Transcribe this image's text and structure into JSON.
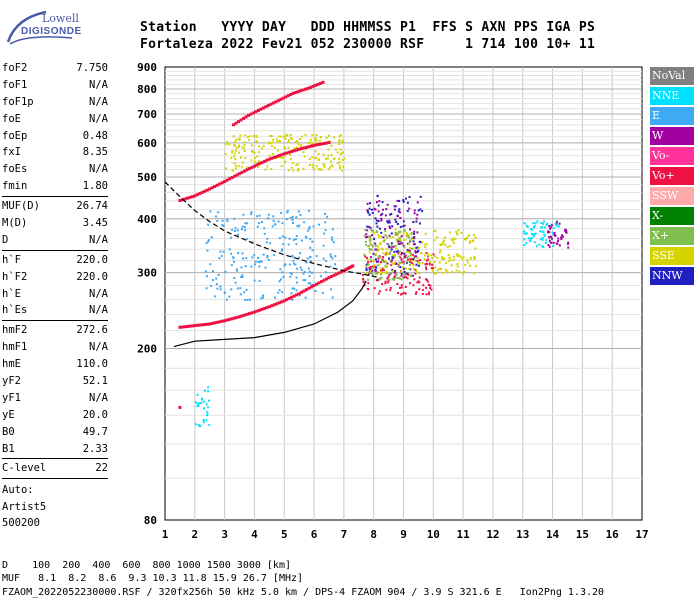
{
  "logo": {
    "line1": "Lowell",
    "line2": "DIGISONDE"
  },
  "header": {
    "line1": "Station   YYYY DAY   DDD HHMMSS P1  FFS S AXN PPS IGA PS",
    "line2": "Fortaleza 2022 Fev21 052 230000 RSF     1 714 100 10+ 11"
  },
  "params_group1": [
    {
      "label": "foF2",
      "value": "7.750"
    },
    {
      "label": "foF1",
      "value": "N/A"
    },
    {
      "label": "foF1p",
      "value": "N/A"
    },
    {
      "label": "foE",
      "value": "N/A"
    },
    {
      "label": "foEp",
      "value": "0.48"
    },
    {
      "label": "fxI",
      "value": "8.35"
    },
    {
      "label": "foEs",
      "value": "N/A"
    },
    {
      "label": "fmin",
      "value": "1.80"
    }
  ],
  "params_group2": [
    {
      "label": "MUF(D)",
      "value": "26.74"
    },
    {
      "label": "M(D)",
      "value": "3.45"
    },
    {
      "label": "D",
      "value": "N/A"
    }
  ],
  "params_group3": [
    {
      "label": "h`F",
      "value": "220.0"
    },
    {
      "label": "h`F2",
      "value": "220.0"
    },
    {
      "label": "h`E",
      "value": "N/A"
    },
    {
      "label": "h`Es",
      "value": "N/A"
    }
  ],
  "params_group4": [
    {
      "label": "hmF2",
      "value": "272.6"
    },
    {
      "label": "hmF1",
      "value": "N/A"
    },
    {
      "label": "hmE",
      "value": "110.0"
    },
    {
      "label": "yF2",
      "value": "52.1"
    },
    {
      "label": "yF1",
      "value": "N/A"
    },
    {
      "label": "yE",
      "value": "20.0"
    },
    {
      "label": "B0",
      "value": "49.7"
    },
    {
      "label": "B1",
      "value": "2.33"
    }
  ],
  "params_group5": [
    {
      "label": "C-level",
      "value": "22"
    }
  ],
  "autoscaling": {
    "line1": "Auto:",
    "line2": "Artist5",
    "line3": "500200"
  },
  "bottom": {
    "d_row": "D    100  200  400  600  800 1000 1500 3000 [km]",
    "muf_row": "MUF   8.1  8.2  8.6  9.3 10.3 11.8 15.9 26.7 [MHz]",
    "footer": "FZAOM_2022052230000.RSF / 320fx256h 50 kHz 5.0 km / DPS-4 FZAOM 904 / 3.9 S 321.6 E   Ion2Png 1.3.20"
  },
  "legend": [
    {
      "label": "NoVal",
      "color": "#808080"
    },
    {
      "label": "NNE",
      "color": "#00e0ff"
    },
    {
      "label": "E",
      "color": "#3fa9f5"
    },
    {
      "label": "W",
      "color": "#a000a0"
    },
    {
      "label": "Vo-",
      "color": "#ff3399"
    },
    {
      "label": "Vo+",
      "color": "#ee1144"
    },
    {
      "label": "SSW",
      "color": "#ffaaaa"
    },
    {
      "label": "X-",
      "color": "#008000"
    },
    {
      "label": "X+",
      "color": "#7fbf4f"
    },
    {
      "label": "SSE",
      "color": "#d4d400"
    },
    {
      "label": "NNW",
      "color": "#2020c0"
    }
  ],
  "chart_data": {
    "type": "scatter",
    "xlim": [
      1,
      17
    ],
    "ylim": [
      80,
      900
    ],
    "y_scale": "log",
    "x_ticks": [
      1,
      2,
      3,
      4,
      5,
      6,
      7,
      8,
      9,
      10,
      11,
      12,
      13,
      14,
      15,
      16,
      17
    ],
    "y_ticks": [
      80,
      200,
      300,
      400,
      500,
      600,
      700,
      800,
      900
    ],
    "grid": true,
    "curves": [
      {
        "name": "profile",
        "style": "solid",
        "points": [
          [
            1.3,
            202
          ],
          [
            2,
            208
          ],
          [
            3,
            210
          ],
          [
            4,
            212
          ],
          [
            5,
            218
          ],
          [
            6,
            228
          ],
          [
            6.8,
            243
          ],
          [
            7.3,
            258
          ],
          [
            7.6,
            275
          ],
          [
            7.75,
            287
          ]
        ]
      },
      {
        "name": "muf",
        "style": "dashed",
        "points": [
          [
            1,
            487
          ],
          [
            1.5,
            450
          ],
          [
            2,
            418
          ],
          [
            2.5,
            394
          ],
          [
            3,
            375
          ],
          [
            4,
            350
          ],
          [
            5,
            330
          ],
          [
            6,
            315
          ],
          [
            7,
            303
          ],
          [
            7.6,
            298
          ],
          [
            8.1,
            293
          ]
        ]
      }
    ],
    "traces": [
      {
        "color": "#ee1144",
        "points": [
          [
            1.5,
            224
          ],
          [
            2,
            226
          ],
          [
            2.5,
            228
          ],
          [
            3,
            232
          ],
          [
            3.5,
            237
          ],
          [
            4,
            243
          ],
          [
            4.5,
            250
          ],
          [
            5,
            258
          ],
          [
            5.5,
            268
          ],
          [
            6,
            280
          ],
          [
            6.5,
            292
          ],
          [
            7,
            303
          ],
          [
            7.3,
            311
          ]
        ]
      },
      {
        "color": "#ee1144",
        "points": [
          [
            1.5,
            441
          ],
          [
            2,
            452
          ],
          [
            2.5,
            469
          ],
          [
            3,
            488
          ],
          [
            3.5,
            509
          ],
          [
            4,
            530
          ],
          [
            4.5,
            550
          ],
          [
            5,
            566
          ],
          [
            5.5,
            580
          ],
          [
            6,
            592
          ],
          [
            6.5,
            601
          ]
        ]
      },
      {
        "color": "#ee1144",
        "points": [
          [
            3.3,
            661
          ],
          [
            3.8,
            695
          ],
          [
            4.3,
            723
          ],
          [
            4.8,
            752
          ],
          [
            5.3,
            782
          ],
          [
            5.8,
            803
          ],
          [
            6.3,
            829
          ]
        ]
      },
      {
        "color": "#ee1144",
        "points": [
          [
            1.5,
            146
          ]
        ]
      }
    ],
    "clouds": [
      {
        "color": "#3fa9f5",
        "x": [
          2.3,
          6.7
        ],
        "y": [
          260,
          420
        ]
      },
      {
        "color": "#ee1144",
        "x": [
          7.6,
          10.0
        ],
        "y": [
          268,
          335
        ]
      },
      {
        "color": "#2020c0",
        "x": [
          7.7,
          9.6
        ],
        "y": [
          300,
          460
        ]
      },
      {
        "color": "#a000a0",
        "x": [
          7.7,
          9.5
        ],
        "y": [
          290,
          450
        ]
      },
      {
        "color": "#d4d400",
        "x": [
          7.7,
          11.4
        ],
        "y": [
          300,
          380
        ]
      },
      {
        "color": "#7fbf4f",
        "x": [
          7.6,
          9.3
        ],
        "y": [
          290,
          380
        ]
      },
      {
        "color": "#00e0ff",
        "x": [
          13.0,
          14.2
        ],
        "y": [
          345,
          400
        ]
      },
      {
        "color": "#a000a0",
        "x": [
          13.8,
          14.5
        ],
        "y": [
          340,
          395
        ]
      },
      {
        "color": "#00e0ff",
        "x": [
          2.0,
          2.5
        ],
        "y": [
          130,
          165
        ]
      },
      {
        "color": "#d4d400",
        "x": [
          3.0,
          7.0
        ],
        "y": [
          520,
          630
        ]
      }
    ]
  }
}
